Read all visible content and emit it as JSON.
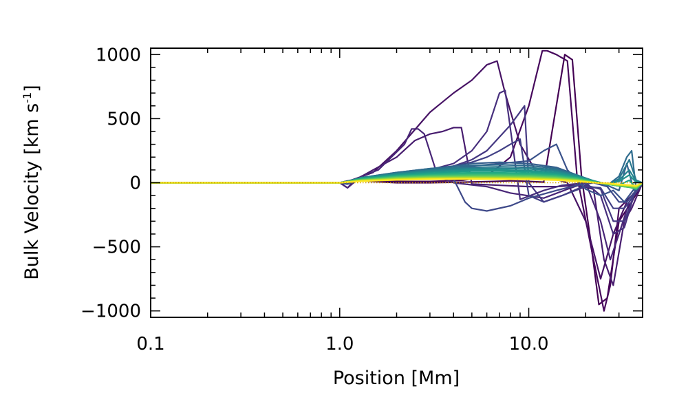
{
  "chart_data": {
    "type": "line",
    "title": "",
    "xlabel": "Position [Mm]",
    "ylabel": "Bulk Velocity [km s",
    "ylabel_superscript": "-1",
    "ylabel_suffix": "]",
    "x_scale": "log",
    "xlim": [
      0.1,
      40
    ],
    "ylim": [
      -1050,
      1050
    ],
    "x_ticks": [
      {
        "value": 0.1,
        "label": "0.1"
      },
      {
        "value": 1.0,
        "label": "1.0"
      },
      {
        "value": 10.0,
        "label": "10.0"
      }
    ],
    "y_ticks": [
      {
        "value": 1000,
        "label": "1000"
      },
      {
        "value": 500,
        "label": "500"
      },
      {
        "value": 0,
        "label": "0"
      },
      {
        "value": -500,
        "label": "−500"
      },
      {
        "value": -1000,
        "label": "−1000"
      }
    ],
    "grid": false,
    "legend": "none",
    "colormap": "viridis",
    "series": [
      {
        "color": "#440154",
        "x": [
          0.1,
          0.8,
          1.0,
          1.15,
          1.5,
          2.0,
          3.0,
          4.5,
          6.5,
          8.0,
          10.0,
          12.0,
          15.5,
          17.0,
          19.0,
          21.0,
          23.5,
          26.0,
          30.0,
          35.0,
          40.0
        ],
        "y": [
          0,
          0,
          0,
          20,
          10,
          0,
          0,
          5,
          10,
          15,
          10,
          5,
          1000,
          960,
          50,
          -400,
          -950,
          -900,
          -300,
          -150,
          0
        ]
      },
      {
        "color": "#46085c",
        "x": [
          0.1,
          0.8,
          1.0,
          1.15,
          1.5,
          2.0,
          3.0,
          4.5,
          6.0,
          8.0,
          10.0,
          11.8,
          12.5,
          14.0,
          16.0,
          18.0,
          22.0,
          25.0,
          27.0,
          30.0,
          35.0,
          40.0
        ],
        "y": [
          0,
          0,
          0,
          20,
          20,
          10,
          10,
          20,
          50,
          200,
          600,
          1030,
          1030,
          1000,
          950,
          50,
          -600,
          -1000,
          -800,
          -200,
          -100,
          0
        ]
      },
      {
        "color": "#471365",
        "x": [
          0.1,
          0.8,
          1.0,
          1.15,
          1.5,
          2.0,
          3.0,
          4.0,
          5.0,
          6.0,
          6.8,
          7.5,
          9.0,
          11.0,
          13.0,
          16.0,
          20.0,
          24.0,
          28.0,
          33.0,
          40.0
        ],
        "y": [
          0,
          0,
          0,
          20,
          80,
          250,
          550,
          700,
          800,
          920,
          950,
          700,
          300,
          80,
          40,
          0,
          -300,
          -750,
          -400,
          -150,
          0
        ]
      },
      {
        "color": "#481d6f",
        "x": [
          0.1,
          0.8,
          1.0,
          1.1,
          1.2,
          1.5,
          2.0,
          2.5,
          3.0,
          3.5,
          4.0,
          4.4,
          5.0,
          7.0,
          10.0,
          14.0,
          18.0,
          22.0,
          25.0,
          28.0,
          32.0,
          35.0,
          40.0
        ],
        "y": [
          0,
          0,
          0,
          -40,
          20,
          100,
          200,
          330,
          380,
          400,
          430,
          430,
          -10,
          -20,
          -30,
          -30,
          -20,
          -50,
          -600,
          -800,
          -300,
          -200,
          0
        ]
      },
      {
        "color": "#482677",
        "x": [
          0.1,
          0.8,
          1.0,
          1.1,
          1.3,
          1.6,
          2.0,
          2.2,
          2.4,
          2.6,
          2.8,
          3.3,
          4.0,
          6.0,
          8.0,
          12.0,
          16.0,
          20.0,
          24.0,
          27.0,
          30.0,
          34.0,
          40.0
        ],
        "y": [
          0,
          0,
          0,
          -40,
          50,
          100,
          240,
          300,
          420,
          420,
          380,
          50,
          0,
          -30,
          -80,
          -120,
          -50,
          0,
          -300,
          -600,
          -400,
          -150,
          0
        ]
      },
      {
        "color": "#472f7d",
        "x": [
          0.1,
          0.8,
          1.0,
          1.1,
          1.3,
          2.0,
          3.0,
          4.0,
          5.0,
          6.0,
          7.0,
          7.5,
          9.0,
          12.0,
          15.0,
          20.0,
          24.0,
          28.0,
          32.0,
          36.0,
          40.0
        ],
        "y": [
          0,
          0,
          0,
          -10,
          30,
          60,
          100,
          150,
          250,
          400,
          700,
          720,
          -130,
          -60,
          -20,
          0,
          -100,
          -400,
          -350,
          -100,
          0
        ]
      },
      {
        "color": "#453882",
        "x": [
          0.1,
          0.8,
          1.0,
          1.1,
          1.3,
          2.0,
          3.0,
          4.0,
          5.0,
          6.0,
          8.0,
          9.5,
          10.0,
          12.0,
          15.0,
          20.0,
          24.0,
          28.0,
          32.0,
          36.0,
          40.0
        ],
        "y": [
          0,
          0,
          0,
          -10,
          30,
          60,
          100,
          130,
          180,
          250,
          450,
          600,
          0,
          -150,
          -100,
          -20,
          -50,
          -300,
          -300,
          -100,
          0
        ]
      },
      {
        "color": "#424086",
        "x": [
          0.1,
          0.8,
          1.0,
          1.1,
          1.3,
          2.0,
          3.0,
          4.0,
          5.0,
          6.0,
          7.0,
          8.0,
          9.0,
          10.0,
          12.0,
          15.0,
          20.0,
          24.0,
          28.0,
          32.0,
          36.0,
          40.0
        ],
        "y": [
          0,
          0,
          0,
          -10,
          30,
          60,
          100,
          130,
          160,
          200,
          250,
          300,
          340,
          -100,
          -150,
          -100,
          -30,
          -40,
          -200,
          -200,
          -100,
          0
        ]
      },
      {
        "color": "#3e4989",
        "x": [
          0.1,
          0.8,
          1.0,
          1.1,
          1.3,
          2.0,
          3.0,
          4.0,
          4.6,
          5.0,
          6.0,
          8.0,
          10.0,
          14.0,
          18.0,
          22.0,
          26.0,
          30.0,
          33.0,
          36.0,
          40.0
        ],
        "y": [
          0,
          0,
          0,
          -10,
          30,
          60,
          60,
          30,
          -150,
          -200,
          -220,
          -180,
          -120,
          -60,
          -20,
          0,
          -30,
          -150,
          -150,
          -80,
          0
        ]
      },
      {
        "color": "#3a528b",
        "x": [
          0.1,
          0.8,
          1.0,
          1.1,
          1.3,
          2.0,
          3.0,
          4.0,
          5.0,
          7.0,
          10.0,
          12.0,
          14.0,
          16.0,
          20.0,
          24.0,
          28.0,
          32.0,
          36.0,
          40.0
        ],
        "y": [
          0,
          0,
          0,
          -10,
          30,
          60,
          90,
          110,
          130,
          150,
          170,
          250,
          300,
          100,
          -50,
          -100,
          -60,
          -150,
          -50,
          0
        ]
      },
      {
        "color": "#355f8d",
        "x": [
          0.1,
          0.8,
          1.0,
          1.1,
          1.3,
          2.0,
          3.0,
          4.0,
          5.0,
          7.0,
          10.0,
          14.0,
          18.0,
          22.0,
          26.0,
          30.0,
          33.0,
          36.0,
          40.0
        ],
        "y": [
          0,
          0,
          0,
          10,
          40,
          80,
          110,
          130,
          150,
          160,
          150,
          120,
          60,
          10,
          -20,
          -60,
          150,
          -60,
          0
        ]
      },
      {
        "color": "#2f6c8e",
        "x": [
          0.1,
          0.8,
          1.0,
          1.1,
          1.3,
          2.0,
          3.0,
          4.0,
          5.0,
          7.0,
          10.0,
          14.0,
          18.0,
          22.0,
          26.0,
          30.0,
          33.0,
          35.0,
          37.0,
          40.0
        ],
        "y": [
          0,
          0,
          0,
          10,
          40,
          80,
          110,
          125,
          135,
          140,
          135,
          110,
          60,
          10,
          -20,
          50,
          200,
          250,
          -50,
          0
        ]
      },
      {
        "color": "#2a788e",
        "x": [
          0.1,
          0.8,
          1.0,
          1.1,
          1.3,
          2.0,
          3.0,
          4.0,
          5.0,
          7.0,
          10.0,
          14.0,
          18.0,
          22.0,
          26.0,
          30.0,
          34.0,
          37.0,
          40.0
        ],
        "y": [
          0,
          0,
          0,
          10,
          40,
          75,
          100,
          115,
          120,
          125,
          120,
          100,
          60,
          15,
          -20,
          30,
          180,
          20,
          0
        ]
      },
      {
        "color": "#25848e",
        "x": [
          0.1,
          0.8,
          1.0,
          1.1,
          1.3,
          2.0,
          3.0,
          4.0,
          5.0,
          7.0,
          10.0,
          14.0,
          18.0,
          22.0,
          26.0,
          30.0,
          34.0,
          37.0,
          40.0
        ],
        "y": [
          0,
          0,
          0,
          10,
          40,
          70,
          95,
          105,
          110,
          112,
          108,
          90,
          55,
          15,
          -15,
          20,
          100,
          10,
          0
        ]
      },
      {
        "color": "#21918c",
        "x": [
          0.1,
          0.8,
          1.0,
          1.1,
          1.3,
          2.0,
          3.0,
          4.0,
          5.0,
          7.0,
          10.0,
          14.0,
          18.0,
          22.0,
          26.0,
          30.0,
          34.0,
          37.0,
          40.0
        ],
        "y": [
          0,
          0,
          0,
          10,
          35,
          65,
          85,
          95,
          100,
          100,
          95,
          80,
          50,
          15,
          -10,
          10,
          60,
          5,
          0
        ]
      },
      {
        "color": "#1e9c89",
        "x": [
          0.1,
          0.8,
          1.0,
          1.1,
          1.3,
          2.0,
          3.0,
          4.0,
          5.0,
          7.0,
          10.0,
          14.0,
          18.0,
          22.0,
          26.0,
          30.0,
          34.0,
          37.0,
          40.0
        ],
        "y": [
          0,
          0,
          0,
          10,
          35,
          60,
          75,
          85,
          90,
          90,
          85,
          70,
          45,
          12,
          -10,
          -20,
          20,
          -40,
          0
        ]
      },
      {
        "color": "#22a884",
        "x": [
          0.1,
          0.8,
          1.0,
          1.1,
          1.3,
          2.0,
          3.0,
          4.0,
          5.0,
          7.0,
          10.0,
          14.0,
          18.0,
          22.0,
          26.0,
          30.0,
          34.0,
          37.0,
          40.0
        ],
        "y": [
          0,
          0,
          0,
          10,
          30,
          55,
          68,
          75,
          78,
          78,
          74,
          62,
          40,
          10,
          -10,
          -25,
          -20,
          -50,
          0
        ]
      },
      {
        "color": "#2fb47c",
        "x": [
          0.1,
          0.8,
          1.0,
          1.1,
          1.3,
          2.0,
          3.0,
          4.0,
          5.0,
          7.0,
          10.0,
          14.0,
          18.0,
          22.0,
          26.0,
          30.0,
          34.0,
          37.0,
          40.0
        ],
        "y": [
          0,
          0,
          0,
          10,
          28,
          50,
          60,
          66,
          68,
          68,
          64,
          54,
          35,
          8,
          -10,
          -25,
          -35,
          -50,
          0
        ]
      },
      {
        "color": "#44bf70",
        "x": [
          0.1,
          0.8,
          1.0,
          1.1,
          1.3,
          2.0,
          3.0,
          4.0,
          5.0,
          7.0,
          10.0,
          14.0,
          18.0,
          22.0,
          26.0,
          30.0,
          34.0,
          37.0,
          40.0
        ],
        "y": [
          0,
          0,
          0,
          10,
          25,
          45,
          54,
          58,
          60,
          60,
          56,
          47,
          30,
          6,
          -10,
          -25,
          -35,
          -45,
          0
        ]
      },
      {
        "color": "#5ec962",
        "x": [
          0.1,
          0.8,
          1.0,
          1.1,
          1.3,
          2.0,
          3.0,
          4.0,
          5.0,
          7.0,
          10.0,
          14.0,
          18.0,
          22.0,
          26.0,
          30.0,
          34.0,
          37.0,
          40.0
        ],
        "y": [
          0,
          0,
          0,
          8,
          22,
          40,
          48,
          51,
          52,
          52,
          49,
          41,
          26,
          5,
          -10,
          -22,
          -30,
          -40,
          0
        ]
      },
      {
        "color": "#7ad151",
        "x": [
          0.1,
          0.8,
          1.0,
          1.1,
          1.3,
          2.0,
          3.0,
          4.0,
          5.0,
          7.0,
          10.0,
          14.0,
          18.0,
          22.0,
          26.0,
          30.0,
          34.0,
          37.0,
          40.0
        ],
        "y": [
          0,
          0,
          0,
          8,
          20,
          36,
          43,
          45,
          46,
          46,
          43,
          36,
          22,
          4,
          -8,
          -20,
          -27,
          -35,
          0
        ]
      },
      {
        "color": "#9bd93c",
        "x": [
          0.1,
          0.8,
          1.0,
          1.1,
          1.3,
          2.0,
          3.0,
          4.0,
          5.0,
          7.0,
          10.0,
          14.0,
          18.0,
          22.0,
          26.0,
          30.0,
          34.0,
          37.0,
          40.0
        ],
        "y": [
          0,
          0,
          0,
          7,
          18,
          32,
          38,
          40,
          41,
          40,
          38,
          31,
          19,
          3,
          -8,
          -18,
          -25,
          -32,
          0
        ]
      },
      {
        "color": "#bddf26",
        "x": [
          0.1,
          0.8,
          1.0,
          1.1,
          1.3,
          2.0,
          3.0,
          4.0,
          5.0,
          7.0,
          10.0,
          14.0,
          18.0,
          22.0,
          26.0,
          30.0,
          34.0,
          37.0,
          40.0
        ],
        "y": [
          0,
          0,
          0,
          6,
          16,
          28,
          34,
          36,
          36,
          35,
          33,
          27,
          16,
          2,
          -7,
          -16,
          -22,
          -28,
          0
        ]
      },
      {
        "color": "#dfe318",
        "x": [
          0.1,
          0.8,
          1.0,
          1.1,
          1.3,
          2.0,
          3.0,
          4.0,
          5.0,
          7.0,
          10.0,
          14.0,
          18.0,
          22.0,
          26.0,
          30.0,
          34.0,
          37.0,
          40.0
        ],
        "y": [
          0,
          0,
          0,
          6,
          14,
          25,
          30,
          32,
          32,
          31,
          29,
          23,
          13,
          2,
          -6,
          -14,
          -20,
          -25,
          0
        ]
      },
      {
        "color": "#fde725",
        "x": [
          0.1,
          0.8,
          1.0,
          1.1,
          1.3,
          2.0,
          3.0,
          4.0,
          5.0,
          7.0,
          10.0,
          14.0,
          18.0,
          22.0,
          26.0,
          30.0,
          34.0,
          37.0,
          40.0
        ],
        "y": [
          0,
          0,
          0,
          5,
          12,
          22,
          27,
          29,
          29,
          28,
          26,
          20,
          11,
          1,
          -5,
          -12,
          -18,
          -22,
          0
        ]
      }
    ],
    "reference_line": {
      "y": 0,
      "color": "#d9a400",
      "style": "dotted"
    }
  }
}
